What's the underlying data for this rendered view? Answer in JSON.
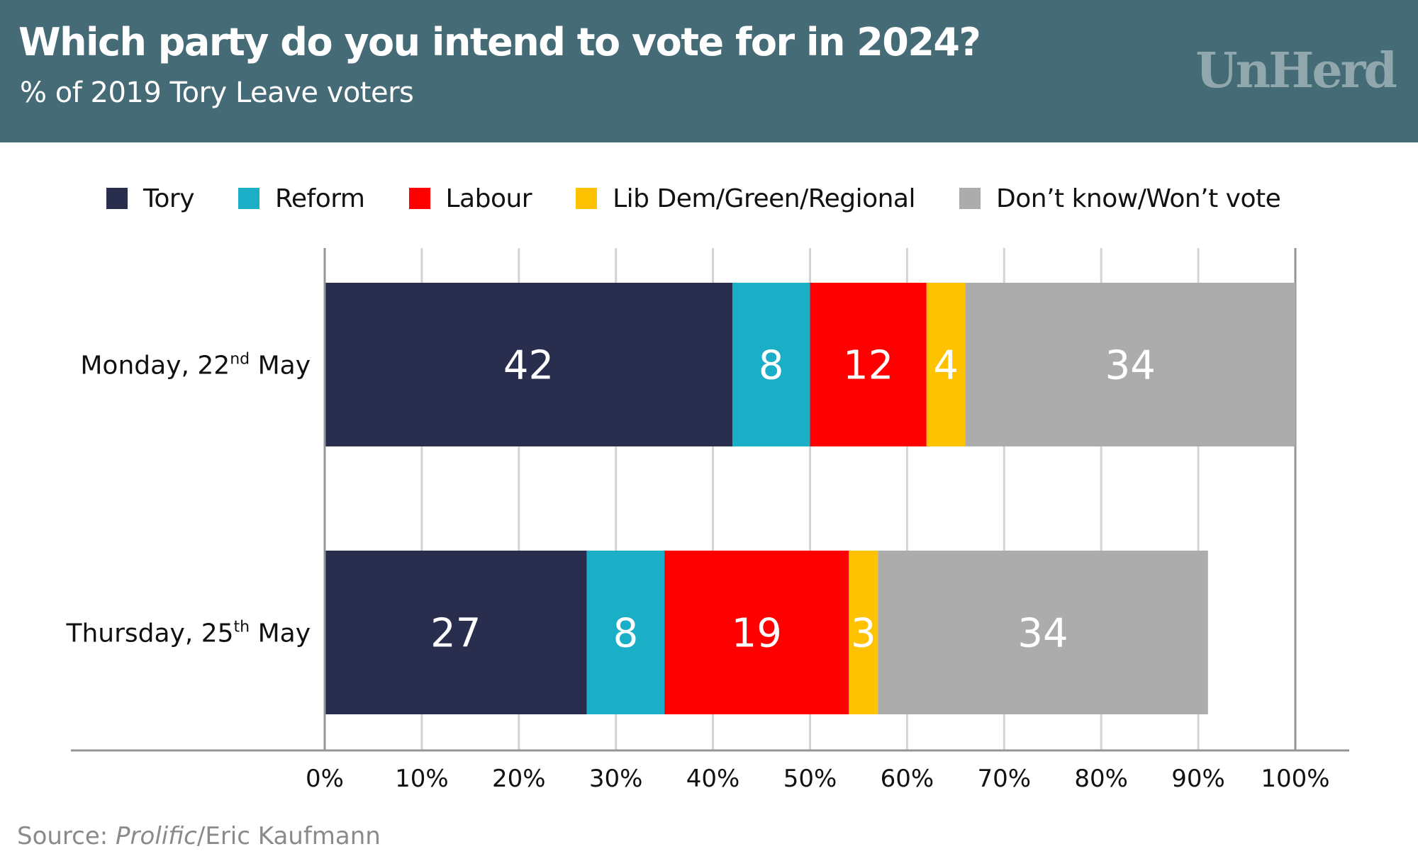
{
  "header": {
    "title": "Which party do you intend to vote for in 2024?",
    "subtitle": "% of 2019 Tory Leave voters",
    "logo": "UnHerd"
  },
  "source": {
    "prefix": "Source: ",
    "italic": "Prolific",
    "suffix": "/Eric Kaufmann"
  },
  "colors": {
    "header_bg": "#456b76",
    "tory": "#292d4e",
    "reform": "#1aafc7",
    "labour": "#ff0000",
    "libdem": "#ffc200",
    "dontknow": "#acacac"
  },
  "chart_data": {
    "type": "bar",
    "orientation": "horizontal",
    "stacked": true,
    "title": "Which party do you intend to vote for in 2024?",
    "subtitle": "% of 2019 Tory Leave voters",
    "categories": [
      {
        "main": "Monday, 22",
        "sup": "nd",
        "tail": " May"
      },
      {
        "main": "Thursday, 25",
        "sup": "th",
        "tail": " May"
      }
    ],
    "series": [
      {
        "name": "Tory",
        "color": "#292d4e",
        "values": [
          42,
          27
        ]
      },
      {
        "name": "Reform",
        "color": "#1aafc7",
        "values": [
          8,
          8
        ]
      },
      {
        "name": "Labour",
        "color": "#ff0000",
        "values": [
          12,
          19
        ]
      },
      {
        "name": "Lib Dem/Green/Regional",
        "color": "#ffc200",
        "values": [
          4,
          3
        ]
      },
      {
        "name": "Don’t know/Won’t vote",
        "color": "#acacac",
        "values": [
          34,
          34
        ]
      }
    ],
    "xlim": [
      0,
      100
    ],
    "xticks": [
      0,
      10,
      20,
      30,
      40,
      50,
      60,
      70,
      80,
      90,
      100
    ],
    "xtick_labels": [
      "0%",
      "10%",
      "20%",
      "30%",
      "40%",
      "50%",
      "60%",
      "70%",
      "80%",
      "90%",
      "100%"
    ],
    "xlabel": "",
    "ylabel": "",
    "grid": true,
    "legend_position": "top"
  }
}
